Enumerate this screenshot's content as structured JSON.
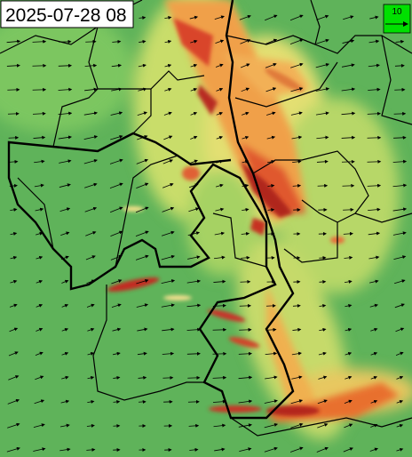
{
  "header": {
    "timestamp": "2025-07-28 08"
  },
  "legend": {
    "label": "10"
  }
}
